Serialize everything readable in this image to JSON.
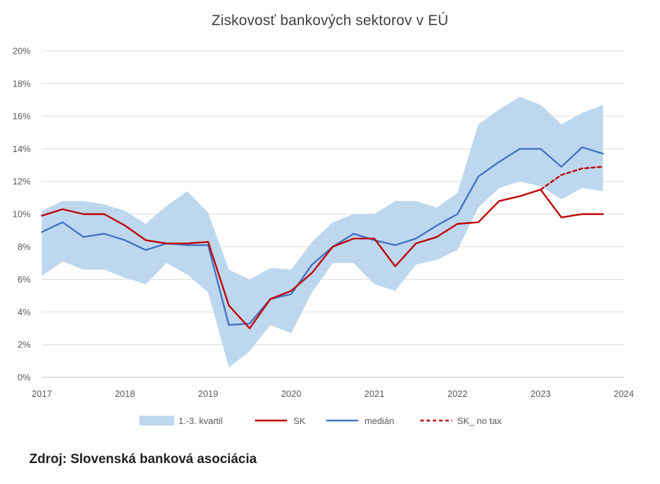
{
  "chart_data": {
    "type": "line",
    "title": "Ziskovosť bankových sektorov v EÚ",
    "xlim": [
      2017,
      2024
    ],
    "ylim": [
      0,
      20
    ],
    "x_ticks": [
      "2017",
      "2018",
      "2019",
      "2020",
      "2021",
      "2022",
      "2023",
      "2024"
    ],
    "y_ticks": [
      "0%",
      "2%",
      "4%",
      "6%",
      "8%",
      "10%",
      "12%",
      "14%",
      "16%",
      "18%",
      "20%"
    ],
    "grid": true,
    "legend_position": "bottom",
    "x": [
      2017.0,
      2017.25,
      2017.5,
      2017.75,
      2018.0,
      2018.25,
      2018.5,
      2018.75,
      2019.0,
      2019.25,
      2019.5,
      2019.75,
      2020.0,
      2020.25,
      2020.5,
      2020.75,
      2021.0,
      2021.25,
      2021.5,
      2021.75,
      2022.0,
      2022.25,
      2022.5,
      2022.75,
      2023.0,
      2023.25,
      2023.5,
      2023.75
    ],
    "band": {
      "name": "1.-3. kvartil",
      "color": "#bdd7ee",
      "lower": [
        6.2,
        7.1,
        6.6,
        6.6,
        6.1,
        5.7,
        7.0,
        6.3,
        5.2,
        0.6,
        1.6,
        3.2,
        2.7,
        5.2,
        7.0,
        7.0,
        5.7,
        5.3,
        6.9,
        7.2,
        7.8,
        10.4,
        11.6,
        12.0,
        11.7,
        10.9,
        11.6,
        11.4
      ],
      "upper": [
        10.2,
        10.8,
        10.8,
        10.6,
        10.2,
        9.4,
        10.5,
        11.4,
        10.1,
        6.6,
        6.0,
        6.7,
        6.6,
        8.3,
        9.5,
        10.0,
        10.0,
        10.8,
        10.8,
        10.4,
        11.3,
        15.5,
        16.4,
        17.2,
        16.7,
        15.5,
        16.2,
        16.7
      ]
    },
    "series": [
      {
        "name": "SK",
        "color": "#c00000",
        "dashed": false,
        "values": [
          9.9,
          10.3,
          10.0,
          10.0,
          9.3,
          8.4,
          8.2,
          8.2,
          8.3,
          4.4,
          3.0,
          4.8,
          5.3,
          6.4,
          8.0,
          8.5,
          8.5,
          6.8,
          8.2,
          8.6,
          9.4,
          9.5,
          10.8,
          11.1,
          11.5,
          9.8,
          10.0,
          10.0
        ]
      },
      {
        "name": "medián",
        "color": "#4472c4",
        "dashed": false,
        "values": [
          8.9,
          9.5,
          8.6,
          8.8,
          8.4,
          7.8,
          8.2,
          8.1,
          8.1,
          3.2,
          3.3,
          4.8,
          5.1,
          6.9,
          8.0,
          8.8,
          8.4,
          8.1,
          8.5,
          9.3,
          10.0,
          12.3,
          13.2,
          14.0,
          14.0,
          12.9,
          14.1,
          13.7
        ]
      },
      {
        "name": "SK_ no tax",
        "color": "#c00000",
        "dashed": true,
        "values": [
          null,
          null,
          null,
          null,
          null,
          null,
          null,
          null,
          null,
          null,
          null,
          null,
          null,
          null,
          null,
          null,
          null,
          null,
          null,
          null,
          null,
          null,
          null,
          null,
          11.5,
          12.4,
          12.8,
          12.9
        ]
      }
    ]
  },
  "source_note": "Zdroj: Slovenská banková asociácia"
}
